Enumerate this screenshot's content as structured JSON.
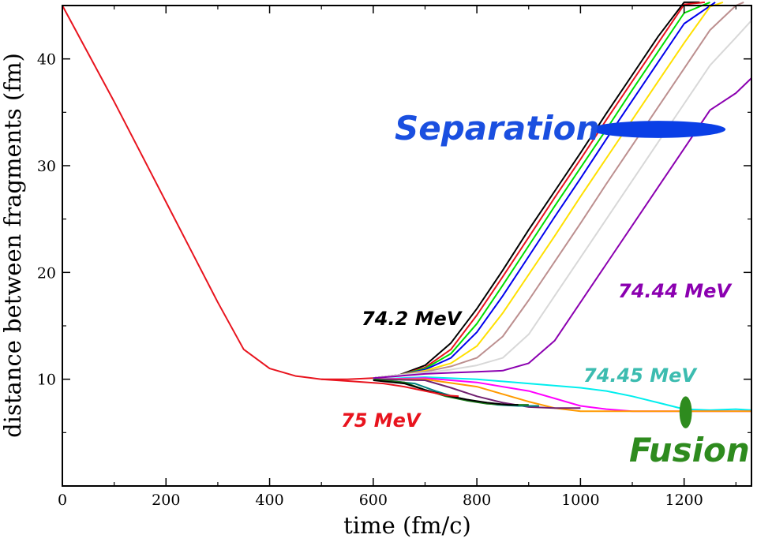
{
  "chart_data": {
    "type": "line",
    "title": "",
    "xlabel": "time (fm/c)",
    "ylabel": "distance between fragments (fm)",
    "xlim": [
      0,
      1330
    ],
    "ylim": [
      0,
      45
    ],
    "xticks": [
      0,
      200,
      400,
      600,
      800,
      1000,
      1200
    ],
    "yticks": [
      10,
      20,
      30,
      40
    ],
    "xtick_labels": [
      "0",
      "200",
      "400",
      "600",
      "800",
      "1000",
      "1200"
    ],
    "ytick_labels": [
      "10",
      "20",
      "30",
      "40"
    ],
    "grid": false,
    "approach": {
      "x": [
        0,
        50,
        100,
        150,
        200,
        250,
        300,
        350,
        400,
        450,
        500,
        550,
        600
      ],
      "y": [
        45,
        40.5,
        36.0,
        31.3,
        26.6,
        21.9,
        17.2,
        12.8,
        11.0,
        10.3,
        10.0,
        10.0,
        10.1
      ]
    },
    "series": [
      {
        "name": "separation-black",
        "color": "#000000",
        "outcome": "separation",
        "x": [
          600,
          650,
          700,
          750,
          800,
          850,
          900,
          950,
          1000,
          1050,
          1100,
          1150,
          1200,
          1230
        ],
        "y": [
          10.1,
          10.4,
          11.3,
          13.4,
          16.6,
          20.2,
          24.0,
          27.6,
          31.2,
          34.9,
          38.5,
          42.1,
          45.3,
          45.3
        ]
      },
      {
        "name": "separation-red",
        "color": "#e8141e",
        "outcome": "separation",
        "x": [
          600,
          650,
          700,
          750,
          800,
          850,
          900,
          950,
          1000,
          1050,
          1100,
          1150,
          1200,
          1240
        ],
        "y": [
          10.1,
          10.4,
          11.1,
          12.8,
          16.0,
          19.6,
          23.3,
          27.0,
          30.6,
          34.3,
          37.9,
          41.5,
          45.1,
          45.3
        ]
      },
      {
        "name": "separation-green",
        "color": "#00dd00",
        "outcome": "separation",
        "x": [
          600,
          650,
          700,
          750,
          800,
          850,
          900,
          950,
          1000,
          1050,
          1100,
          1150,
          1200,
          1250
        ],
        "y": [
          10.1,
          10.4,
          11.0,
          12.4,
          15.2,
          18.8,
          22.5,
          26.2,
          29.8,
          33.4,
          37.1,
          40.7,
          44.3,
          45.3
        ]
      },
      {
        "name": "separation-blue",
        "color": "#0000ee",
        "outcome": "separation",
        "x": [
          600,
          650,
          700,
          750,
          800,
          850,
          900,
          950,
          1000,
          1050,
          1100,
          1150,
          1200,
          1260
        ],
        "y": [
          10.1,
          10.4,
          10.9,
          12.0,
          14.4,
          17.8,
          21.5,
          25.2,
          28.8,
          32.5,
          36.1,
          39.7,
          43.3,
          45.3
        ]
      },
      {
        "name": "separation-yellow",
        "color": "#ffe000",
        "outcome": "separation",
        "x": [
          600,
          650,
          700,
          750,
          800,
          850,
          900,
          950,
          1000,
          1050,
          1100,
          1150,
          1200,
          1250,
          1275
        ],
        "y": [
          10.1,
          10.4,
          10.8,
          11.5,
          13.1,
          16.2,
          19.8,
          23.4,
          27.1,
          30.7,
          34.3,
          37.9,
          41.5,
          44.9,
          45.3
        ]
      },
      {
        "name": "separation-brown",
        "color": "#bc8f8f",
        "outcome": "separation",
        "x": [
          600,
          650,
          700,
          750,
          800,
          850,
          900,
          950,
          1000,
          1050,
          1100,
          1150,
          1200,
          1250,
          1300,
          1315
        ],
        "y": [
          10.1,
          10.4,
          10.7,
          11.2,
          12.0,
          14.0,
          17.4,
          21.0,
          24.6,
          28.3,
          31.9,
          35.5,
          39.1,
          42.7,
          45.0,
          45.3
        ]
      },
      {
        "name": "separation-lightgray",
        "color": "#d8d8d8",
        "outcome": "separation",
        "x": [
          600,
          650,
          700,
          750,
          800,
          850,
          900,
          950,
          1000,
          1050,
          1100,
          1150,
          1200,
          1250,
          1300,
          1330
        ],
        "y": [
          10.1,
          10.4,
          10.6,
          10.9,
          11.3,
          12.0,
          14.2,
          17.8,
          21.4,
          25.0,
          28.6,
          32.2,
          35.8,
          39.4,
          42.0,
          43.6
        ]
      },
      {
        "name": "separation-purple",
        "color": "#8b00b0",
        "outcome": "separation",
        "x": [
          600,
          650,
          700,
          750,
          800,
          850,
          900,
          950,
          1000,
          1050,
          1100,
          1150,
          1200,
          1250,
          1300,
          1330
        ],
        "y": [
          10.1,
          10.3,
          10.5,
          10.6,
          10.7,
          10.8,
          11.5,
          13.6,
          17.2,
          20.8,
          24.4,
          28.0,
          31.6,
          35.2,
          36.8,
          38.2
        ]
      },
      {
        "name": "fusion-cyan",
        "color": "#00eeee",
        "outcome": "fusion",
        "x": [
          600,
          700,
          800,
          900,
          1000,
          1050,
          1100,
          1150,
          1200,
          1250,
          1300,
          1330
        ],
        "y": [
          10.0,
          10.2,
          10.0,
          9.6,
          9.2,
          8.9,
          8.4,
          7.8,
          7.2,
          7.1,
          7.2,
          7.1
        ]
      },
      {
        "name": "fusion-magenta",
        "color": "#ff00ff",
        "outcome": "fusion",
        "x": [
          600,
          700,
          800,
          900,
          950,
          1000,
          1050,
          1100,
          1150,
          1200,
          1300,
          1330
        ],
        "y": [
          10.0,
          10.1,
          9.7,
          8.9,
          8.2,
          7.5,
          7.2,
          7.0,
          7.0,
          7.0,
          7.0,
          7.0
        ]
      },
      {
        "name": "fusion-orange",
        "color": "#ff9a00",
        "outcome": "fusion",
        "x": [
          600,
          700,
          800,
          850,
          900,
          950,
          1000,
          1100,
          1200,
          1330
        ],
        "y": [
          10.0,
          10.0,
          9.3,
          8.6,
          7.9,
          7.3,
          7.0,
          7.0,
          7.0,
          7.0
        ]
      },
      {
        "name": "fusion-darkpurple",
        "color": "#702070",
        "outcome": "fusion",
        "x": [
          600,
          700,
          750,
          800,
          850,
          900,
          950,
          1000
        ],
        "y": [
          10.0,
          9.9,
          9.2,
          8.4,
          7.8,
          7.4,
          7.3,
          7.3
        ]
      },
      {
        "name": "fusion-teal",
        "color": "#008080",
        "outcome": "fusion",
        "x": [
          600,
          680,
          720,
          760,
          800,
          840,
          880,
          920
        ],
        "y": [
          10.0,
          9.6,
          8.9,
          8.3,
          7.9,
          7.6,
          7.5,
          7.5
        ]
      },
      {
        "name": "fusion-darkgreen",
        "color": "#1a7a1a",
        "outcome": "fusion",
        "x": [
          600,
          660,
          700,
          740,
          780,
          820,
          860,
          900
        ],
        "y": [
          10.0,
          9.7,
          9.0,
          8.4,
          8.0,
          7.7,
          7.6,
          7.6
        ]
      },
      {
        "name": "fusion-black",
        "color": "#000000",
        "outcome": "fusion",
        "x": [
          600,
          660,
          700,
          740,
          780,
          820,
          860,
          880
        ],
        "y": [
          9.9,
          9.6,
          9.0,
          8.5,
          8.1,
          7.8,
          7.6,
          7.6
        ]
      },
      {
        "name": "fusion-red",
        "color": "#e8141e",
        "outcome": "fusion",
        "x": [
          500,
          560,
          620,
          660,
          700,
          740,
          765
        ],
        "y": [
          10.0,
          9.8,
          9.6,
          9.3,
          8.9,
          8.5,
          8.4
        ]
      }
    ],
    "annotations": [
      {
        "id": "label-74-2",
        "text": "74.2 MeV",
        "color": "#000000"
      },
      {
        "id": "label-74-44",
        "text": "74.44 MeV",
        "color": "#8b00b0"
      },
      {
        "id": "label-74-45",
        "text": "74.45 MeV",
        "color": "#3cbcb0"
      },
      {
        "id": "label-75",
        "text": "75 MeV",
        "color": "#e8141e"
      },
      {
        "id": "label-separation",
        "text": "Separation",
        "color": "#1a4fe0"
      },
      {
        "id": "label-fusion",
        "text": "Fusion",
        "color": "#2e8b1e"
      }
    ],
    "markers": [
      {
        "id": "separation-ellipse",
        "color": "#0a3fe6",
        "x": 1150,
        "y": 33.4,
        "rx_data": 130,
        "ry_data": 0.8
      },
      {
        "id": "fusion-ellipse",
        "color": "#2e8b1e",
        "x": 1203,
        "y": 6.9,
        "rx_data": 12,
        "ry_data": 1.5
      }
    ]
  }
}
